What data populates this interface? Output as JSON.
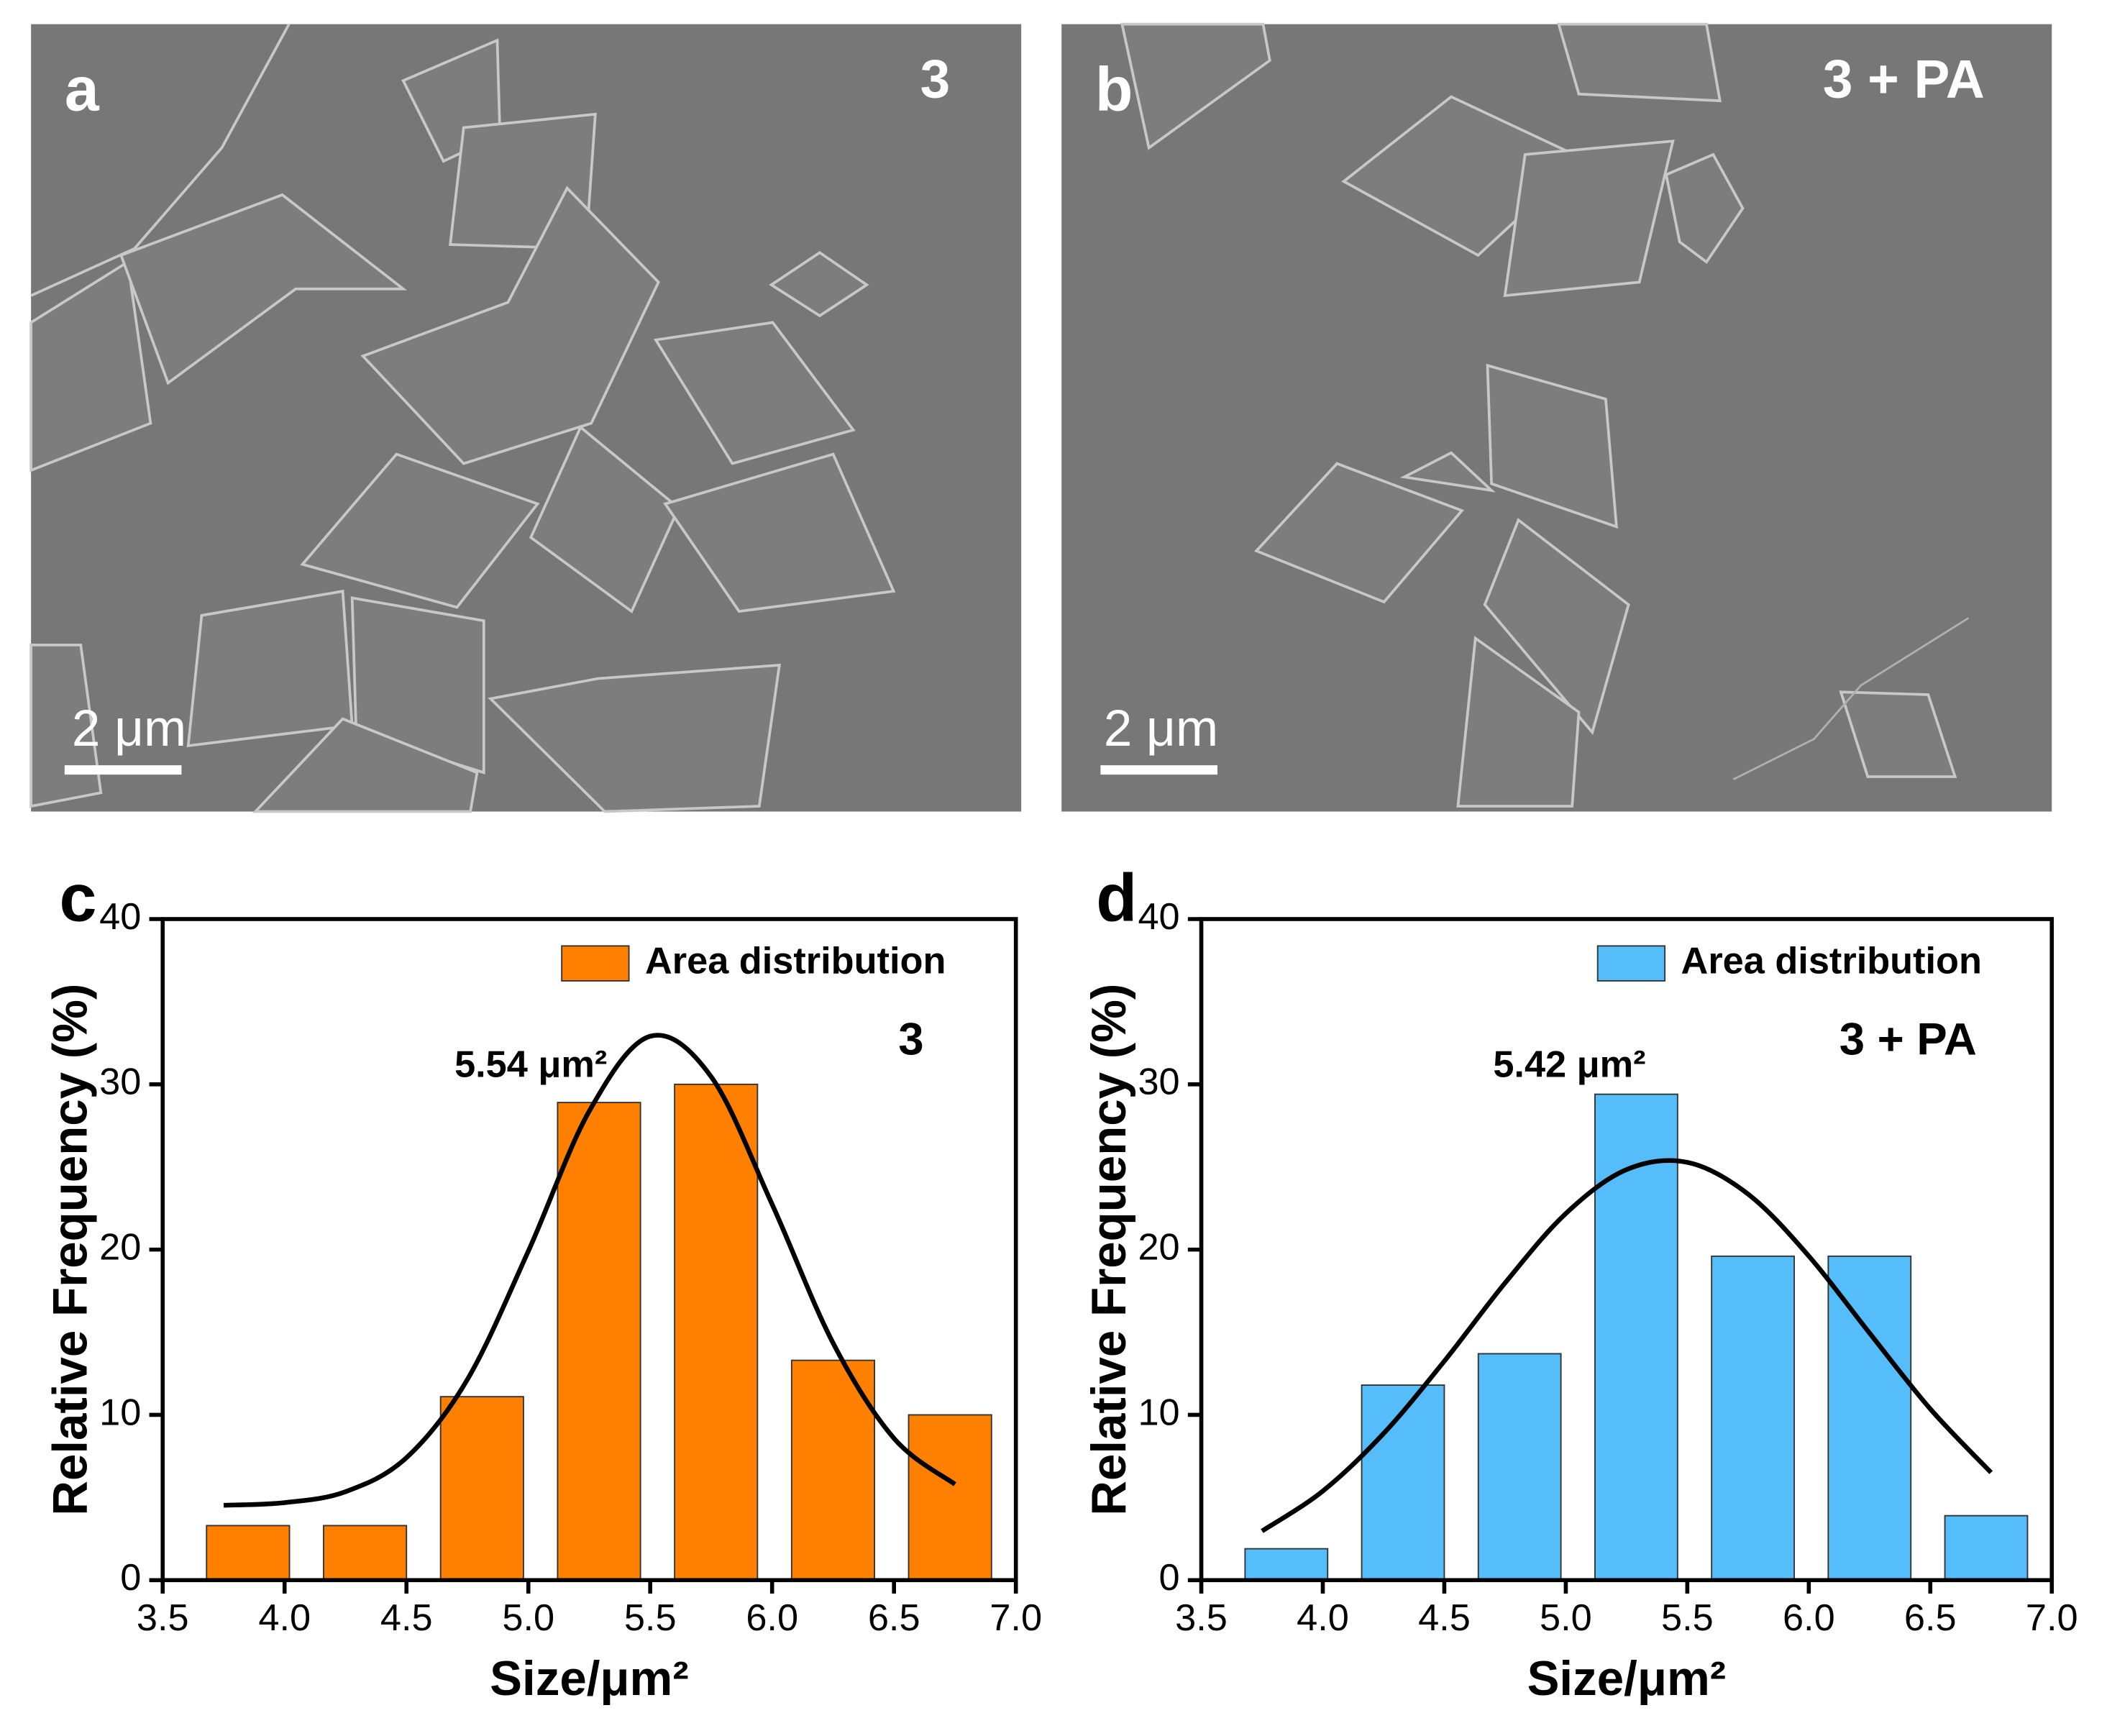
{
  "images": [
    {
      "panel": "a",
      "label": "3",
      "scale_bar": "2 μm"
    },
    {
      "panel": "b",
      "label": "3 + PA",
      "scale_bar": "2 μm"
    }
  ],
  "chart_data": [
    {
      "type": "bar",
      "panel": "c",
      "x_label": "Size/μm²",
      "y_label": "Relative Frequency (%)",
      "annotation": "5.54 μm²",
      "sample_label": "3",
      "xlim": [
        3.5,
        7.0
      ],
      "xticks": [
        3.5,
        {
          "value": 4,
          "label": "4.0"
        },
        4.5,
        {
          "value": 5,
          "label": "5.0"
        },
        5.5,
        {
          "value": 6,
          "label": "6.0"
        },
        6.5,
        {
          "value": 7,
          "label": "7.0"
        }
      ],
      "ylim": [
        0,
        40
      ],
      "yticks": [
        0,
        10,
        20,
        30,
        40
      ],
      "legend": "upper right",
      "series": [
        {
          "name": "Area distribution",
          "color": "#ff8000",
          "x": [
            3.85,
            4.33,
            4.81,
            5.29,
            5.77,
            6.25,
            6.73
          ],
          "values": [
            3.3,
            3.3,
            11.1,
            28.9,
            30.0,
            13.3,
            10.0
          ]
        }
      ],
      "fit": {
        "color": "#000000",
        "x": [
          3.75,
          4.0,
          4.25,
          4.5,
          4.75,
          5.0,
          5.25,
          5.5,
          5.75,
          6.0,
          6.25,
          6.5,
          6.75
        ],
        "values": [
          4.53,
          4.69,
          5.35,
          7.41,
          12.14,
          19.91,
          28.38,
          32.91,
          30.46,
          22.74,
          14.35,
          8.58,
          5.8
        ]
      }
    },
    {
      "type": "bar",
      "panel": "d",
      "x_label": "Size/μm²",
      "y_label": "Relative Frequency (%)",
      "annotation": "5.42 μm²",
      "sample_label": "3 + PA",
      "xlim": [
        3.5,
        7.0
      ],
      "xticks": [
        3.5,
        {
          "value": 4,
          "label": "4.0"
        },
        4.5,
        {
          "value": 5,
          "label": "5.0"
        },
        5.5,
        {
          "value": 6,
          "label": "6.0"
        },
        6.5,
        {
          "value": 7,
          "label": "7.0"
        }
      ],
      "ylim": [
        0,
        40
      ],
      "yticks": [
        0,
        10,
        20,
        30,
        40
      ],
      "legend": "upper right",
      "series": [
        {
          "name": "Area distribution",
          "color": "#55bdf9",
          "x": [
            3.85,
            4.33,
            4.81,
            5.29,
            5.77,
            6.25,
            6.73
          ],
          "values": [
            1.9,
            11.8,
            13.7,
            29.4,
            19.6,
            19.6,
            3.9
          ]
        }
      ],
      "fit": {
        "color": "#000000",
        "x": [
          3.75,
          4.0,
          4.25,
          4.5,
          4.75,
          5.0,
          5.25,
          5.5,
          5.75,
          6.0,
          6.25,
          6.5,
          6.75
        ],
        "values": [
          2.97,
          5.39,
          8.87,
          13.25,
          17.98,
          22.18,
          24.84,
          25.28,
          23.36,
          19.61,
          14.95,
          10.36,
          6.51
        ]
      }
    }
  ]
}
